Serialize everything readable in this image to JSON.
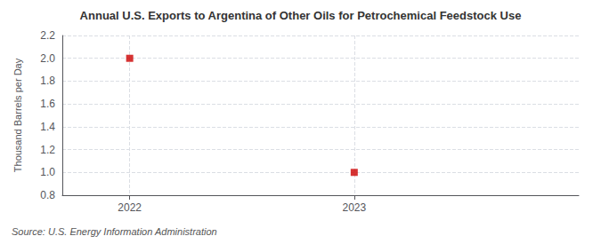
{
  "chart_data": {
    "type": "scatter",
    "title": "Annual U.S. Exports to Argentina of Other Oils for Petrochemical Feedstock Use",
    "ylabel": "Thousand Barrels per Day",
    "source": "Source: U.S. Energy Information Administration",
    "x": [
      2022,
      2023
    ],
    "values": [
      2.0,
      1.0
    ],
    "color": "#cc0000",
    "marker": "square",
    "xlim": [
      2021.7,
      2024.0
    ],
    "xticks": [
      2022,
      2023
    ],
    "ylim": [
      0.8,
      2.2
    ],
    "yticks": [
      0.8,
      {
        "value": 1.0,
        "label": "1.0"
      },
      1.2,
      1.4,
      1.6,
      1.8,
      {
        "value": 2.0,
        "label": "2.0"
      },
      2.2
    ],
    "grid": true
  }
}
